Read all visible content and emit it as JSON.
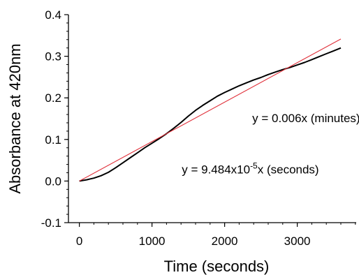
{
  "chart_data": {
    "type": "line",
    "title": "",
    "xlabel": "Time (seconds)",
    "ylabel": "Absorbance at 420nm",
    "xlim": [
      -150,
      3850
    ],
    "ylim": [
      -0.1,
      0.4
    ],
    "x_ticks": [
      0,
      1000,
      2000,
      3000
    ],
    "x_tick_labels": [
      "0",
      "1000",
      "2000",
      "3000"
    ],
    "y_ticks": [
      -0.1,
      0.0,
      0.1,
      0.2,
      0.3,
      0.4
    ],
    "y_tick_labels": [
      "-0.1",
      "0.0",
      "0.1",
      "0.2",
      "0.3",
      "0.4"
    ],
    "grid": false,
    "series": [
      {
        "color": "#000000",
        "x": [
          0,
          100,
          200,
          300,
          400,
          500,
          600,
          700,
          800,
          900,
          1000,
          1100,
          1200,
          1300,
          1400,
          1500,
          1600,
          1700,
          1800,
          1900,
          2000,
          2100,
          2200,
          2300,
          2400,
          2500,
          2600,
          2700,
          2800,
          2900,
          3000,
          3100,
          3200,
          3300,
          3400,
          3500,
          3600
        ],
        "y": [
          0.0,
          0.003,
          0.007,
          0.013,
          0.021,
          0.032,
          0.044,
          0.056,
          0.068,
          0.08,
          0.091,
          0.102,
          0.114,
          0.127,
          0.141,
          0.156,
          0.17,
          0.182,
          0.193,
          0.204,
          0.213,
          0.221,
          0.229,
          0.236,
          0.243,
          0.249,
          0.256,
          0.262,
          0.268,
          0.273,
          0.279,
          0.285,
          0.292,
          0.299,
          0.306,
          0.313,
          0.32
        ]
      },
      {
        "color": "#e0303a",
        "x": [
          0,
          3600
        ],
        "y": [
          0.0,
          0.3414
        ]
      }
    ],
    "annotations": [
      {
        "text": "y = 0.006x (minutes)",
        "x": 2380,
        "y": 0.142
      },
      {
        "prefix": "y = 9.484x10",
        "superscript": "-5",
        "suffix": "x (seconds)",
        "x": 1410,
        "y": 0.018
      }
    ]
  }
}
